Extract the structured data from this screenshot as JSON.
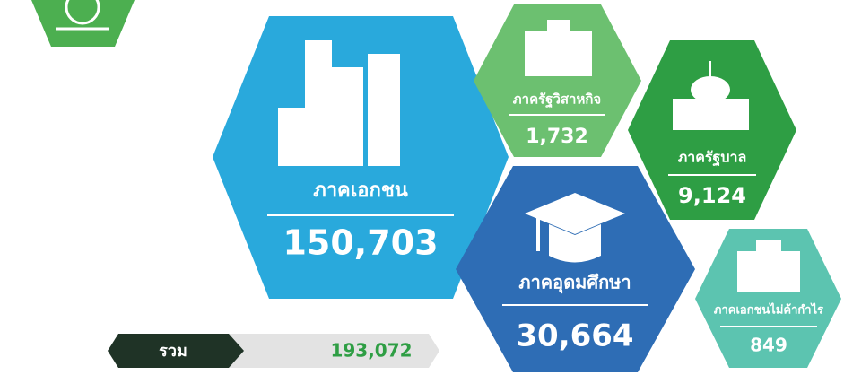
{
  "sectors": [
    {
      "label": "ภาคเอกชน",
      "value": "150,703"
    },
    {
      "label": "ภาครัฐวิสาหกิจ",
      "value": "1,732"
    },
    {
      "label": "ภาครัฐบาล",
      "value": "9,124"
    },
    {
      "label": "ภาคอุดมศึกษา",
      "value": "30,664"
    },
    {
      "label": "ภาคเอกชนไม่ค้ากำไร",
      "value": "849"
    }
  ],
  "total": {
    "label": "รวม",
    "value": "193,072"
  }
}
